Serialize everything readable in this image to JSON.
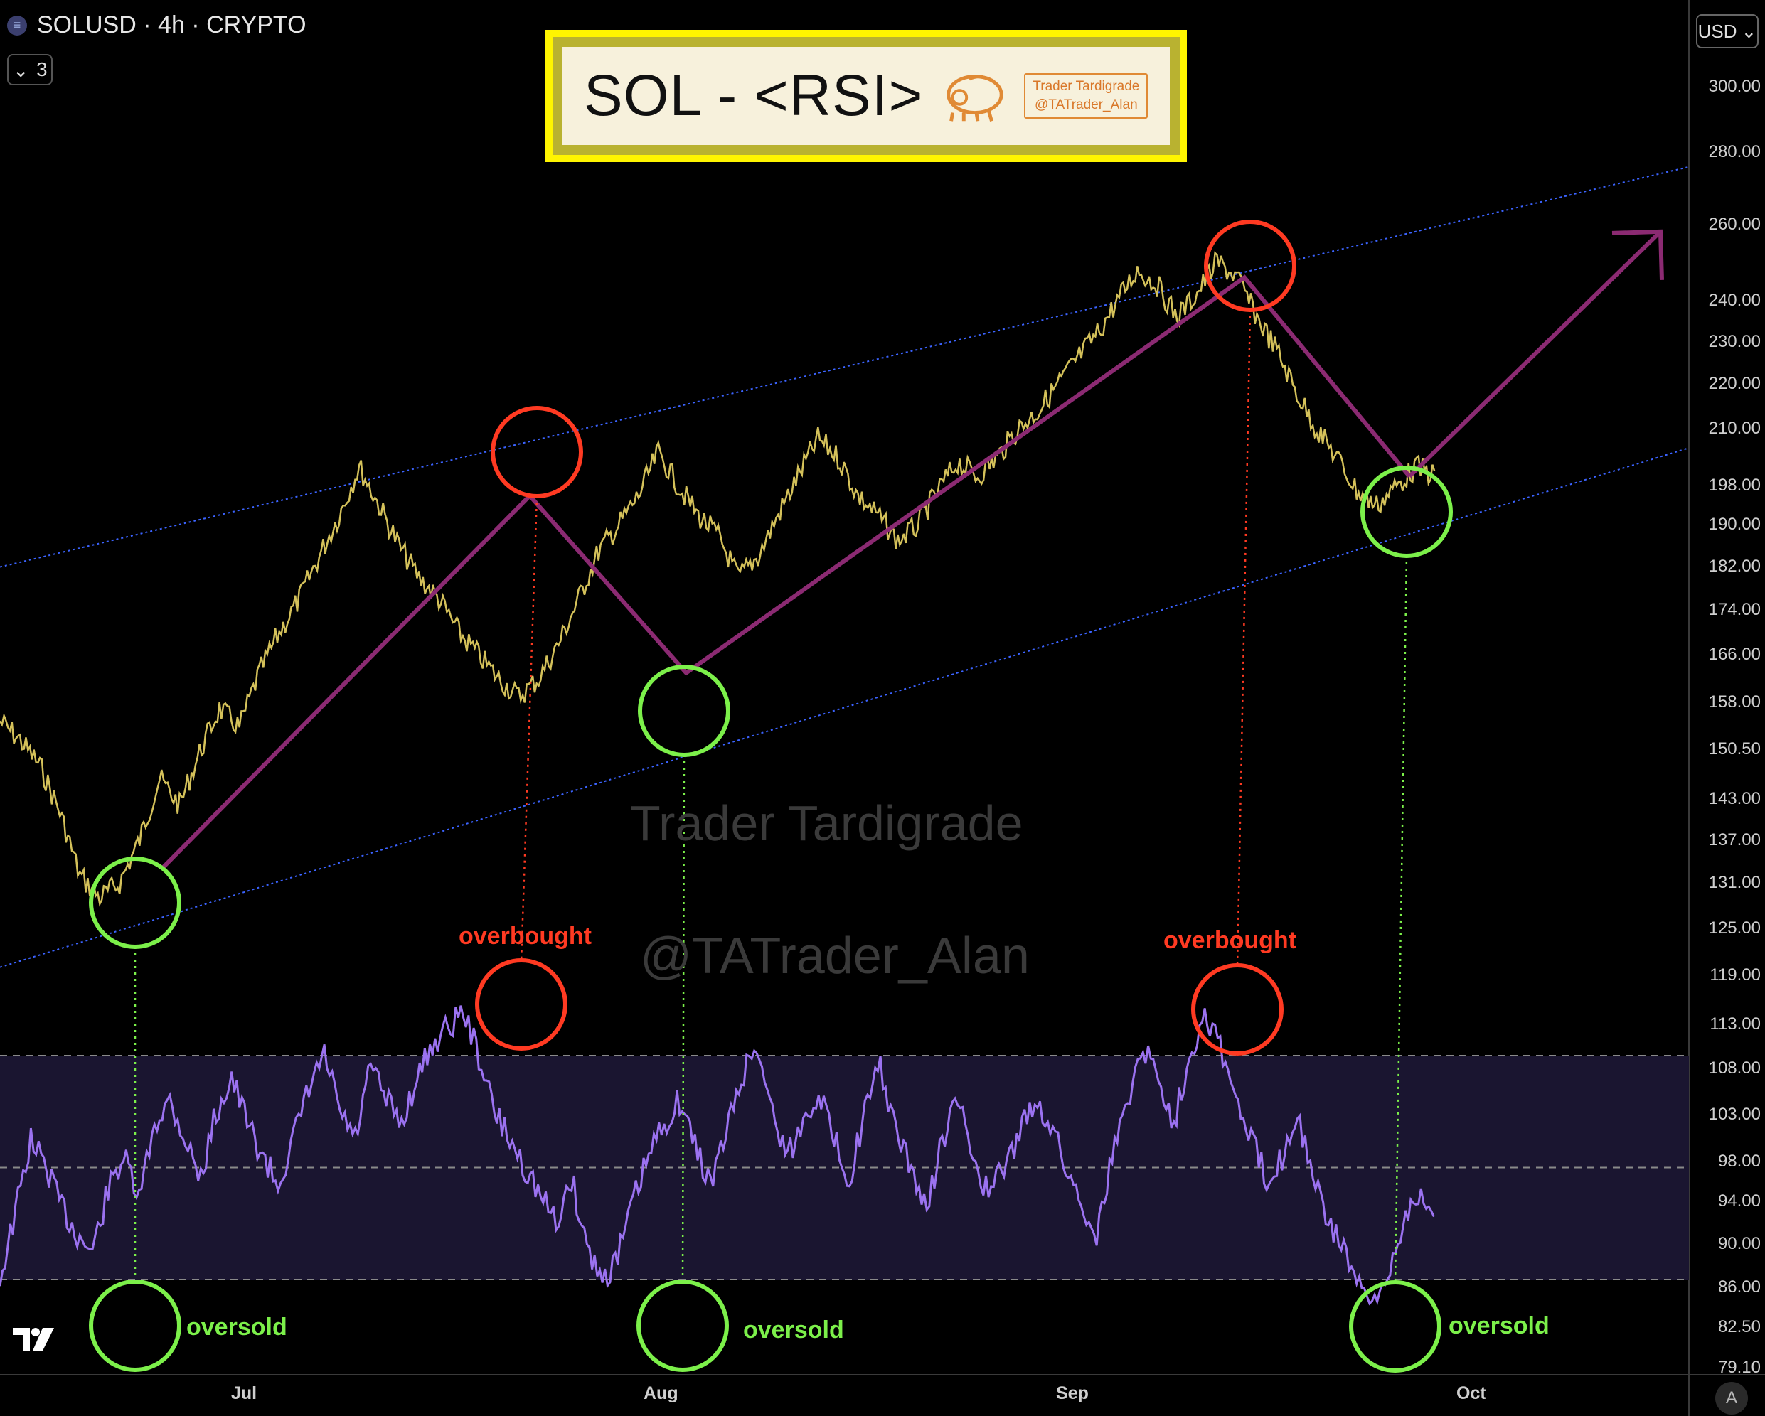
{
  "header": {
    "symbol_line": "SOLUSD · 4h · CRYPTO",
    "indicator_count": "3",
    "currency": "USD"
  },
  "title_card": {
    "title": "SOL - <RSI>",
    "brand_line1": "Trader Tardigrade",
    "brand_line2": "@TATrader_Alan"
  },
  "watermark": {
    "line1": "Trader Tardigrade",
    "line2": "@TATrader_Alan"
  },
  "annotations": {
    "overbought": "overbought",
    "oversold": "oversold"
  },
  "chart_data": {
    "type": "line",
    "symbol": "SOLUSD",
    "timeframe": "4h",
    "x_ticks": [
      "Jul",
      "Aug",
      "Sep",
      "Oct"
    ],
    "y_ticks": [
      "300.00",
      "280.00",
      "260.00",
      "240.00",
      "230.00",
      "220.00",
      "210.00",
      "198.00",
      "190.00",
      "182.00",
      "174.00",
      "166.00",
      "158.00",
      "150.50",
      "143.00",
      "137.00",
      "131.00",
      "125.00",
      "119.00",
      "113.00",
      "108.00",
      "103.00",
      "98.00",
      "94.00",
      "90.00",
      "86.00",
      "82.50",
      "79.10"
    ],
    "price_path_y": [
      155,
      152,
      148,
      141,
      132,
      129,
      131,
      137,
      146,
      142,
      150,
      157,
      154,
      163,
      170,
      176,
      184,
      192,
      202,
      194,
      186,
      180,
      176,
      170,
      166,
      162,
      159,
      162,
      168,
      176,
      185,
      190,
      196,
      205,
      198,
      192,
      188,
      180,
      184,
      192,
      200,
      208,
      204,
      196,
      192,
      187,
      190,
      197,
      203,
      200,
      204,
      210,
      214,
      220,
      226,
      232,
      240,
      248,
      244,
      236,
      242,
      250,
      246,
      236,
      228,
      218,
      210,
      204,
      197,
      194,
      198,
      202,
      200
    ],
    "swing_path_y": [
      133,
      196,
      163,
      246,
      200
    ],
    "projection_y": [
      200,
      258
    ],
    "channel": {
      "upper_y": [
        182,
        276
      ],
      "lower_y": [
        120,
        206
      ]
    },
    "rsi_levels": {
      "upper": 70,
      "middle": 50,
      "lower": 30
    },
    "rsi_values": [
      30,
      42,
      55,
      50,
      43,
      38,
      35,
      46,
      52,
      44,
      58,
      62,
      55,
      48,
      60,
      66,
      58,
      52,
      47,
      55,
      64,
      70,
      60,
      55,
      68,
      62,
      58,
      66,
      72,
      75,
      78,
      70,
      60,
      55,
      50,
      45,
      40,
      48,
      36,
      30,
      34,
      44,
      52,
      58,
      62,
      54,
      47,
      56,
      66,
      72,
      60,
      52,
      58,
      64,
      55,
      48,
      60,
      68,
      56,
      50,
      42,
      55,
      62,
      52,
      45,
      50,
      56,
      62,
      58,
      50,
      44,
      38,
      52,
      62,
      72,
      66,
      58,
      70,
      78,
      72,
      62,
      55,
      48,
      52,
      60,
      48,
      40,
      36,
      28,
      25,
      32,
      42,
      46,
      40
    ],
    "events": [
      {
        "type": "oversold",
        "price": 131,
        "month": "Jun"
      },
      {
        "type": "overbought",
        "price": 198,
        "month": "Jul"
      },
      {
        "type": "oversold",
        "price": 158,
        "month": "Aug"
      },
      {
        "type": "overbought",
        "price": 246,
        "month": "Sep"
      },
      {
        "type": "oversold",
        "price": 194,
        "month": "Sep"
      }
    ]
  },
  "colors": {
    "price": "#d4c15a",
    "swing": "#8b2a72",
    "channel": "#3b63ff",
    "rsi": "#9b72f0",
    "overbought": "#ff3a22",
    "oversold": "#7cf04a",
    "title_border": "#fff500"
  }
}
